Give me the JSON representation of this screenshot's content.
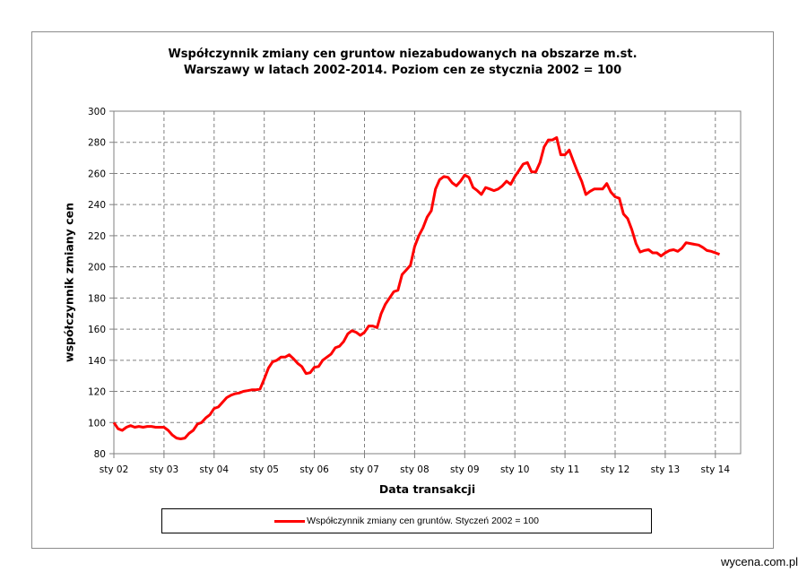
{
  "chart_data": {
    "type": "line",
    "title": "Współczynnik  zmiany  cen gruntow niezabudowanych  na obszarze  m.st. Warszawy  w latach  2002-2014. Poziom  cen ze stycznia  2002 = 100",
    "title_lines": [
      "Współczynnik  zmiany  cen gruntow niezabudowanych  na obszarze  m.st.",
      "Warszawy  w latach  2002-2014. Poziom  cen ze stycznia  2002 = 100"
    ],
    "xlabel": "Data transakcji",
    "ylabel": "współczynnik  zmiany cen",
    "ylim": [
      80,
      300
    ],
    "yticks": [
      80,
      100,
      120,
      140,
      160,
      180,
      200,
      220,
      240,
      260,
      280,
      300
    ],
    "xticks": [
      "sty 02",
      "sty 03",
      "sty 04",
      "sty 05",
      "sty 06",
      "sty 07",
      "sty 08",
      "sty 09",
      "sty 10",
      "sty 11",
      "sty 12",
      "sty 13",
      "sty 14"
    ],
    "grid": true,
    "legend_position": "bottom",
    "series": [
      {
        "name": "Współczynnik zmiany cen gruntów. Styczeń 2002 = 100",
        "color": "#ff0000",
        "start": "2002-01",
        "frequency": "monthly",
        "values": [
          100,
          96,
          95,
          97,
          98,
          97,
          97.5,
          97,
          97.5,
          97.5,
          97,
          97,
          97,
          95,
          92,
          90,
          89.5,
          90,
          93,
          95,
          99,
          100,
          103,
          105,
          109,
          110,
          113,
          116,
          117.5,
          118.5,
          119,
          120,
          120.5,
          121,
          121,
          121.5,
          128,
          135,
          139,
          140,
          142,
          142,
          143.5,
          141,
          138,
          136,
          131.5,
          132,
          135.5,
          136,
          140,
          142,
          144,
          148,
          149,
          152,
          157,
          159,
          158,
          156,
          158,
          162,
          162,
          161,
          170,
          176,
          180,
          184,
          185,
          195,
          198,
          201,
          213,
          220,
          225,
          232,
          236,
          250,
          256,
          258,
          257.5,
          254,
          252,
          255,
          259,
          257.5,
          251,
          249,
          246.5,
          251,
          250,
          249,
          250,
          252,
          255,
          253,
          258,
          262,
          266,
          267,
          261,
          261,
          267,
          277,
          281.5,
          281.5,
          283,
          272,
          272,
          275,
          268,
          261,
          255,
          246.5,
          248.5,
          250,
          250,
          250,
          253.5,
          248,
          245,
          244,
          234,
          231,
          224,
          215,
          209.5,
          210.5,
          211,
          209,
          209,
          207,
          209,
          210.5,
          211,
          210,
          212,
          215.5,
          215,
          214.5,
          214,
          212.5,
          210.5,
          210,
          209,
          208
        ]
      }
    ]
  },
  "credit": "wycena.com.pl"
}
